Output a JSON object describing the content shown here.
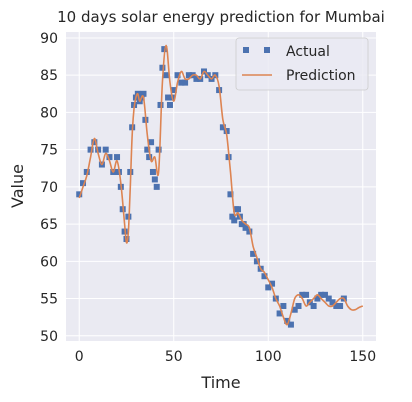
{
  "chart_data": {
    "type": "line",
    "title": "10 days solar energy prediction for Mumbai",
    "xlabel": "Time",
    "ylabel": "Value",
    "xlim": [
      -7,
      157
    ],
    "ylim": [
      49.3,
      90.8
    ],
    "xticks": [
      0,
      50,
      100,
      150
    ],
    "yticks": [
      50,
      55,
      60,
      65,
      70,
      75,
      80,
      85,
      90
    ],
    "grid": true,
    "legend": "top-right",
    "colors": {
      "background": "#EAEAF2",
      "grid": "#FFFFFF",
      "actual": "#4C72B0",
      "prediction": "#DD8452"
    },
    "series": [
      {
        "name": "Actual",
        "style": "square-markers",
        "x": [
          0,
          2,
          4,
          6,
          8,
          10,
          12,
          14,
          16,
          18,
          20,
          21,
          22,
          23,
          24,
          25,
          26,
          27,
          28,
          29,
          30,
          31,
          32,
          33,
          34,
          35,
          36,
          37,
          38,
          39,
          40,
          41,
          42,
          43,
          44,
          45,
          46,
          47,
          48,
          49,
          50,
          52,
          54,
          56,
          58,
          60,
          62,
          64,
          66,
          68,
          70,
          72,
          74,
          76,
          78,
          79,
          80,
          81,
          82,
          83,
          84,
          85,
          86,
          87,
          88,
          90,
          92,
          94,
          96,
          98,
          100,
          102,
          104,
          106,
          108,
          110,
          112,
          114,
          116,
          118,
          120,
          122,
          124,
          126,
          128,
          130,
          132,
          134,
          136,
          138,
          140
        ],
        "y": [
          69,
          70.5,
          72,
          75,
          76,
          75,
          73,
          75,
          74,
          72,
          74,
          72,
          70,
          67,
          64,
          63,
          66,
          72,
          78,
          81,
          82,
          82.5,
          81.5,
          82,
          82.5,
          79,
          75,
          74,
          76,
          72,
          71,
          70,
          75,
          81,
          86,
          88.5,
          85,
          82,
          81,
          82,
          83,
          85,
          84,
          84,
          85,
          85,
          84.5,
          84.5,
          85.5,
          85,
          84.5,
          85,
          83,
          78,
          77.5,
          74,
          69,
          66,
          65.5,
          67,
          67,
          66,
          65,
          65,
          64.5,
          64,
          61,
          60,
          59,
          58,
          56.5,
          57,
          55,
          53,
          54,
          52,
          51.5,
          53.5,
          54,
          55.5,
          55.5,
          54.5,
          54,
          55,
          55.5,
          55.5,
          55,
          54.5,
          54,
          54,
          55
        ]
      },
      {
        "name": "Prediction",
        "style": "line",
        "x": [
          0,
          2,
          4,
          6,
          8,
          10,
          12,
          14,
          16,
          18,
          20,
          22,
          24,
          25,
          26,
          27,
          28,
          29,
          30,
          31,
          32,
          34,
          36,
          38,
          40,
          42,
          44,
          46,
          48,
          50,
          52,
          54,
          56,
          58,
          60,
          62,
          64,
          66,
          68,
          70,
          72,
          74,
          76,
          78,
          80,
          82,
          84,
          86,
          88,
          90,
          92,
          94,
          96,
          98,
          100,
          102,
          104,
          106,
          108,
          110,
          112,
          114,
          116,
          118,
          120,
          122,
          124,
          126,
          128,
          130,
          132,
          134,
          136,
          138,
          140,
          142,
          144,
          146,
          148,
          150
        ],
        "y": [
          68.5,
          70,
          71.5,
          74,
          76.5,
          74.5,
          73,
          74.5,
          73.5,
          72,
          73.5,
          70.5,
          65,
          62.5,
          64,
          70,
          77,
          80.5,
          82,
          82.5,
          81.5,
          82,
          77,
          73.5,
          74,
          72,
          84,
          89,
          84,
          81.5,
          84,
          85.5,
          84.5,
          84.5,
          85,
          85,
          84.5,
          85.5,
          85,
          84.5,
          85,
          83.5,
          79,
          77,
          72,
          66.5,
          66.5,
          65.5,
          65,
          64.5,
          62,
          60.5,
          59,
          58.5,
          57.5,
          56.5,
          55,
          54,
          52.5,
          51.5,
          53,
          55,
          55.5,
          55,
          54,
          54.5,
          55,
          55.5,
          55,
          54.5,
          54,
          54,
          54.5,
          55,
          55,
          54,
          53.5,
          53.5,
          53.8,
          54
        ]
      }
    ]
  }
}
